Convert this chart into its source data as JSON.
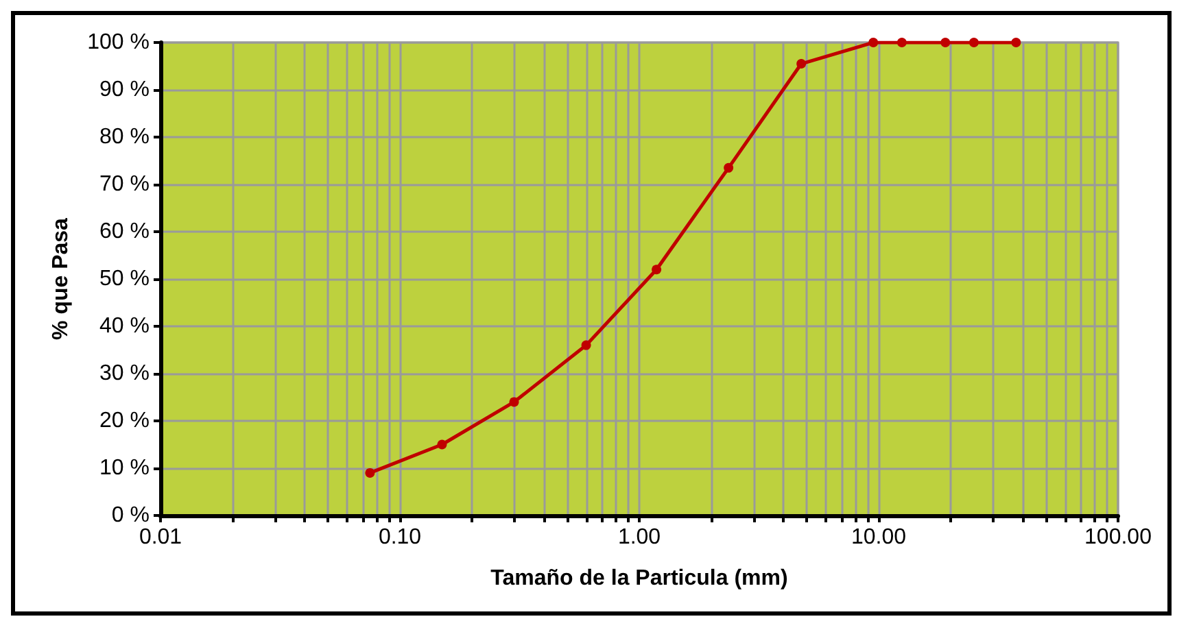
{
  "chart_data": {
    "type": "line",
    "xlabel": "Tamaño de la Particula (mm)",
    "ylabel": "% que Pasa",
    "log": "x",
    "grid": true,
    "marker": "circle",
    "line_style": "solid",
    "xlim": [
      0.01,
      100
    ],
    "xticks": [
      {
        "value": 0.01,
        "label": "0.01"
      },
      {
        "value": 0.02,
        "label": null
      },
      {
        "value": 0.03,
        "label": null
      },
      {
        "value": 0.04,
        "label": null
      },
      {
        "value": 0.05,
        "label": null
      },
      {
        "value": 0.06,
        "label": null
      },
      {
        "value": 0.07,
        "label": null
      },
      {
        "value": 0.08,
        "label": null
      },
      {
        "value": 0.09,
        "label": null
      },
      {
        "value": 0.1,
        "label": "0.10"
      },
      {
        "value": 0.2,
        "label": null
      },
      {
        "value": 0.3,
        "label": null
      },
      {
        "value": 0.4,
        "label": null
      },
      {
        "value": 0.5,
        "label": null
      },
      {
        "value": 0.6,
        "label": null
      },
      {
        "value": 0.7,
        "label": null
      },
      {
        "value": 0.8,
        "label": null
      },
      {
        "value": 0.9,
        "label": null
      },
      {
        "value": 1,
        "label": "1.00"
      },
      {
        "value": 2,
        "label": null
      },
      {
        "value": 3,
        "label": null
      },
      {
        "value": 4,
        "label": null
      },
      {
        "value": 5,
        "label": null
      },
      {
        "value": 6,
        "label": null
      },
      {
        "value": 7,
        "label": null
      },
      {
        "value": 8,
        "label": null
      },
      {
        "value": 9,
        "label": null
      },
      {
        "value": 10,
        "label": "10.00"
      },
      {
        "value": 20,
        "label": null
      },
      {
        "value": 30,
        "label": null
      },
      {
        "value": 40,
        "label": null
      },
      {
        "value": 50,
        "label": null
      },
      {
        "value": 60,
        "label": null
      },
      {
        "value": 70,
        "label": null
      },
      {
        "value": 80,
        "label": null
      },
      {
        "value": 90,
        "label": null
      },
      {
        "value": 100,
        "label": "100.00"
      }
    ],
    "ylim": [
      0,
      100
    ],
    "yticks": [
      {
        "value": 0,
        "label": "0 %"
      },
      {
        "value": 10,
        "label": "10 %"
      },
      {
        "value": 20,
        "label": "20 %"
      },
      {
        "value": 30,
        "label": "30 %"
      },
      {
        "value": 40,
        "label": "40 %"
      },
      {
        "value": 50,
        "label": "50 %"
      },
      {
        "value": 60,
        "label": "60 %"
      },
      {
        "value": 70,
        "label": "70 %"
      },
      {
        "value": 80,
        "label": "80 %"
      },
      {
        "value": 90,
        "label": "90 %"
      },
      {
        "value": 100,
        "label": "100 %"
      }
    ],
    "x": [
      0.075,
      0.15,
      0.3,
      0.6,
      1.18,
      2.36,
      4.75,
      9.5,
      12.5,
      19,
      25,
      37.5
    ],
    "series": [
      {
        "color": "#c00000",
        "values": [
          9,
          15,
          24,
          36,
          52,
          73.5,
          95.5,
          100,
          100,
          100,
          100,
          100
        ]
      }
    ]
  }
}
